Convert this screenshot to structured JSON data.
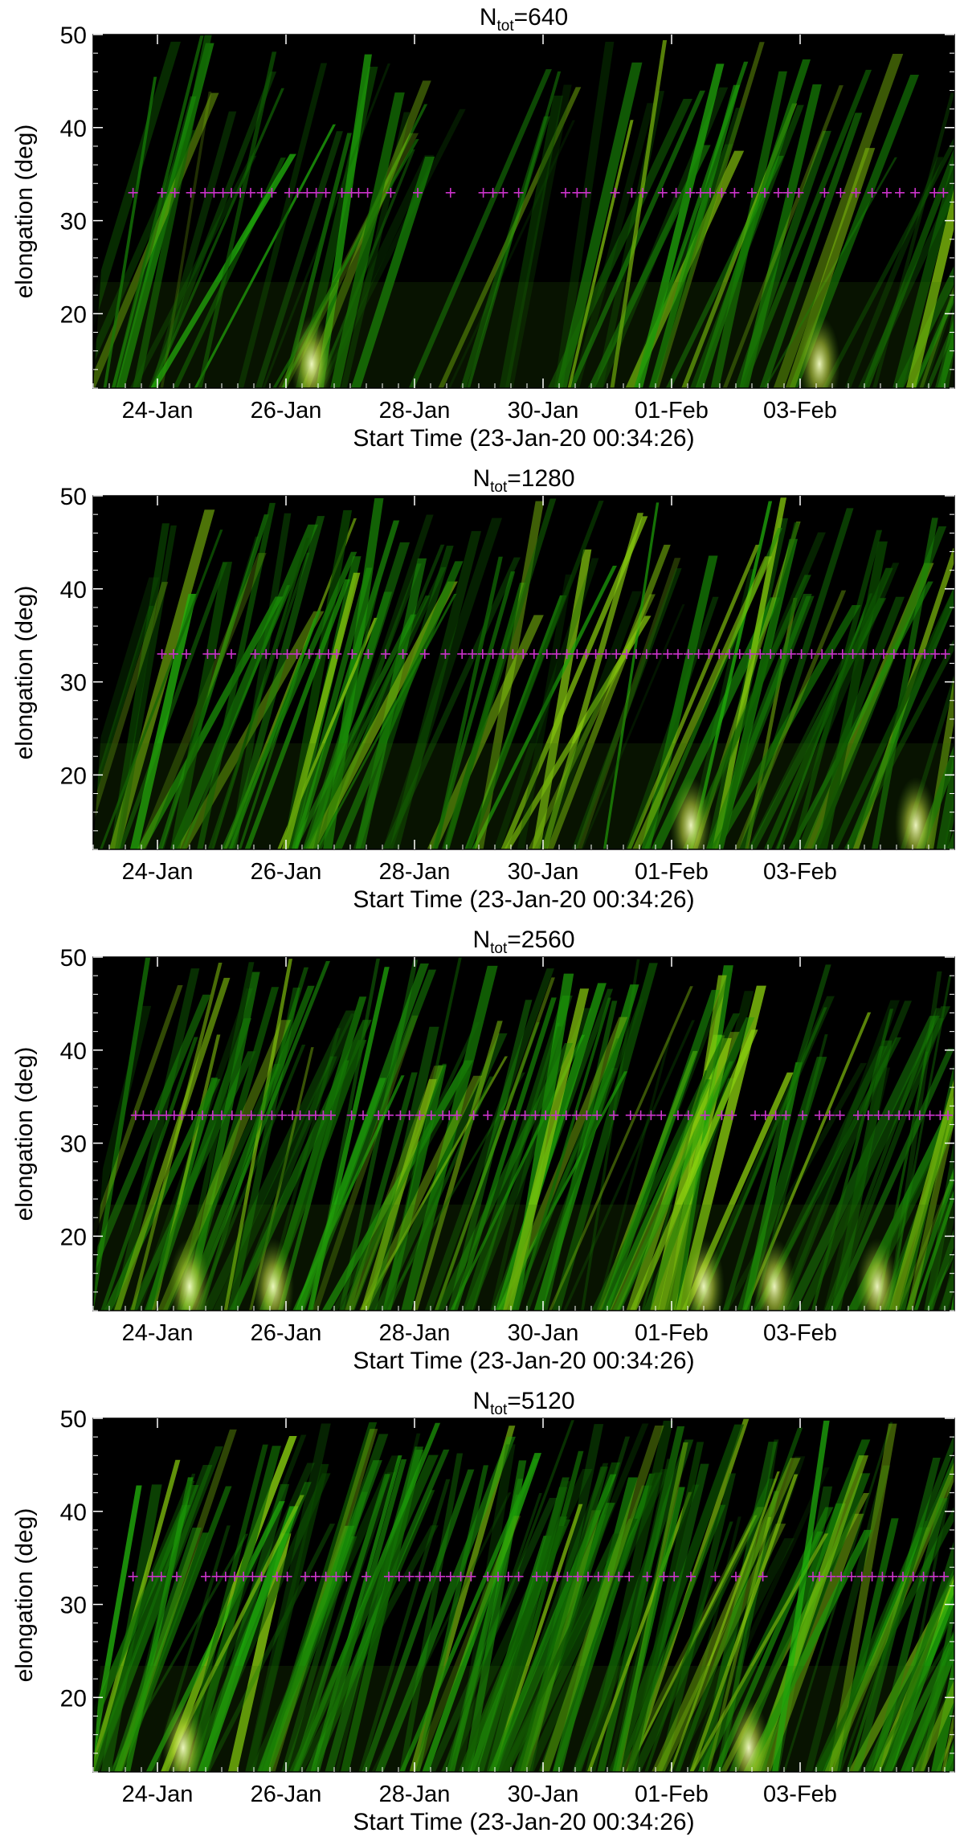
{
  "chart_data": [
    {
      "type": "heatmap",
      "title_base": "N",
      "title_sub": "tot",
      "title_value": "=640",
      "ylabel": "elongation (deg)",
      "xlabel": "Start Time (23-Jan-20 00:34:26)",
      "ylim": [
        12,
        50
      ],
      "yticks": [
        20,
        30,
        40,
        50
      ],
      "xticks": [
        "24-Jan",
        "26-Jan",
        "28-Jan",
        "30-Jan",
        "01-Feb",
        "03-Feb"
      ],
      "marker_elongation": 33,
      "marker_color": "#cc33cc",
      "bright_spots": [
        3.4,
        11.3
      ],
      "markers_days": [
        0.62,
        1.07,
        1.27,
        1.52,
        1.74,
        1.88,
        2.02,
        2.15,
        2.29,
        2.45,
        2.62,
        2.78,
        3.05,
        3.18,
        3.33,
        3.47,
        3.62,
        3.87,
        4.02,
        4.13,
        4.27,
        4.63,
        5.05,
        5.56,
        6.07,
        6.22,
        6.38,
        6.62,
        7.35,
        7.53,
        7.67,
        8.12,
        8.38,
        8.55,
        8.86,
        9.07,
        9.29,
        9.45,
        9.6,
        9.78,
        9.98,
        10.25,
        10.45,
        10.66,
        10.81,
        10.98,
        11.38,
        11.63,
        11.87,
        12.12,
        12.35,
        12.55,
        12.79,
        13.09,
        13.23
      ]
    },
    {
      "type": "heatmap",
      "title_base": "N",
      "title_sub": "tot",
      "title_value": "=1280",
      "ylabel": "elongation (deg)",
      "xlabel": "Start Time (23-Jan-20 00:34:26)",
      "ylim": [
        12,
        50
      ],
      "yticks": [
        20,
        30,
        40,
        50
      ],
      "xticks": [
        "24-Jan",
        "26-Jan",
        "28-Jan",
        "30-Jan",
        "01-Feb",
        "03-Feb"
      ],
      "marker_elongation": 33,
      "marker_color": "#cc33cc",
      "bright_spots": [
        9.3,
        12.8
      ],
      "markers_days": [
        1.07,
        1.25,
        1.45,
        1.78,
        1.9,
        2.15,
        2.52,
        2.69,
        2.86,
        3.02,
        3.17,
        3.36,
        3.52,
        3.66,
        3.79,
        4.03,
        4.28,
        4.55,
        4.82,
        5.16,
        5.48,
        5.74,
        5.9,
        6.06,
        6.22,
        6.38,
        6.53,
        6.69,
        6.86,
        7.06,
        7.21,
        7.37,
        7.53,
        7.67,
        7.82,
        7.98,
        8.14,
        8.3,
        8.45,
        8.61,
        8.77,
        8.94,
        9.1,
        9.26,
        9.42,
        9.58,
        9.74,
        9.9,
        10.06,
        10.22,
        10.38,
        10.54,
        10.7,
        10.86,
        11.02,
        11.18,
        11.34,
        11.5,
        11.66,
        11.82,
        11.98,
        12.14,
        12.3,
        12.46,
        12.62,
        12.78,
        12.94,
        13.1,
        13.26
      ]
    },
    {
      "type": "heatmap",
      "title_base": "N",
      "title_sub": "tot",
      "title_value": "=2560",
      "ylabel": "elongation (deg)",
      "xlabel": "Start Time (23-Jan-20 00:34:26)",
      "ylim": [
        12,
        50
      ],
      "yticks": [
        20,
        30,
        40,
        50
      ],
      "xticks": [
        "24-Jan",
        "26-Jan",
        "28-Jan",
        "30-Jan",
        "01-Feb",
        "03-Feb"
      ],
      "marker_elongation": 33,
      "marker_color": "#cc33cc",
      "bright_spots": [
        1.5,
        2.8,
        9.5,
        10.6,
        12.2
      ],
      "markers_days": [
        0.66,
        0.78,
        0.9,
        1.02,
        1.14,
        1.26,
        1.38,
        1.54,
        1.7,
        1.86,
        2.0,
        2.16,
        2.3,
        2.46,
        2.62,
        2.78,
        2.94,
        3.1,
        3.22,
        3.36,
        3.46,
        3.58,
        3.7,
        4.02,
        4.2,
        4.44,
        4.6,
        4.78,
        4.92,
        5.08,
        5.26,
        5.44,
        5.54,
        5.66,
        5.92,
        6.14,
        6.4,
        6.56,
        6.72,
        6.88,
        7.04,
        7.2,
        7.36,
        7.52,
        7.68,
        7.84,
        8.1,
        8.36,
        8.52,
        8.68,
        8.84,
        9.1,
        9.26,
        9.52,
        9.78,
        9.94,
        10.3,
        10.46,
        10.62,
        10.78,
        11.04,
        11.3,
        11.46,
        11.62,
        11.9,
        12.06,
        12.22,
        12.38,
        12.54,
        12.7,
        12.86,
        13.02,
        13.18,
        13.3
      ]
    },
    {
      "type": "heatmap",
      "title_base": "N",
      "title_sub": "tot",
      "title_value": "=5120",
      "ylabel": "elongation (deg)",
      "xlabel": "Start Time (23-Jan-20 00:34:26)",
      "ylim": [
        12,
        50
      ],
      "yticks": [
        20,
        30,
        40,
        50
      ],
      "xticks": [
        "24-Jan",
        "26-Jan",
        "28-Jan",
        "30-Jan",
        "01-Feb",
        "03-Feb"
      ],
      "marker_elongation": 33,
      "marker_color": "#cc33cc",
      "bright_spots": [
        1.4,
        10.2
      ],
      "markers_days": [
        0.62,
        0.92,
        1.06,
        1.3,
        1.75,
        1.92,
        2.06,
        2.2,
        2.34,
        2.48,
        2.62,
        2.86,
        3.02,
        3.3,
        3.46,
        3.62,
        3.78,
        3.94,
        4.25,
        4.6,
        4.76,
        4.92,
        5.08,
        5.24,
        5.4,
        5.56,
        5.72,
        5.88,
        6.14,
        6.3,
        6.46,
        6.62,
        6.9,
        7.06,
        7.22,
        7.38,
        7.54,
        7.7,
        7.86,
        8.02,
        8.18,
        8.34,
        8.62,
        8.88,
        9.04,
        9.3,
        9.68,
        10.0,
        10.42,
        11.2,
        11.3,
        11.48,
        11.64,
        11.8,
        11.96,
        12.12,
        12.28,
        12.44,
        12.6,
        12.76,
        12.92,
        13.08,
        13.24
      ]
    }
  ]
}
